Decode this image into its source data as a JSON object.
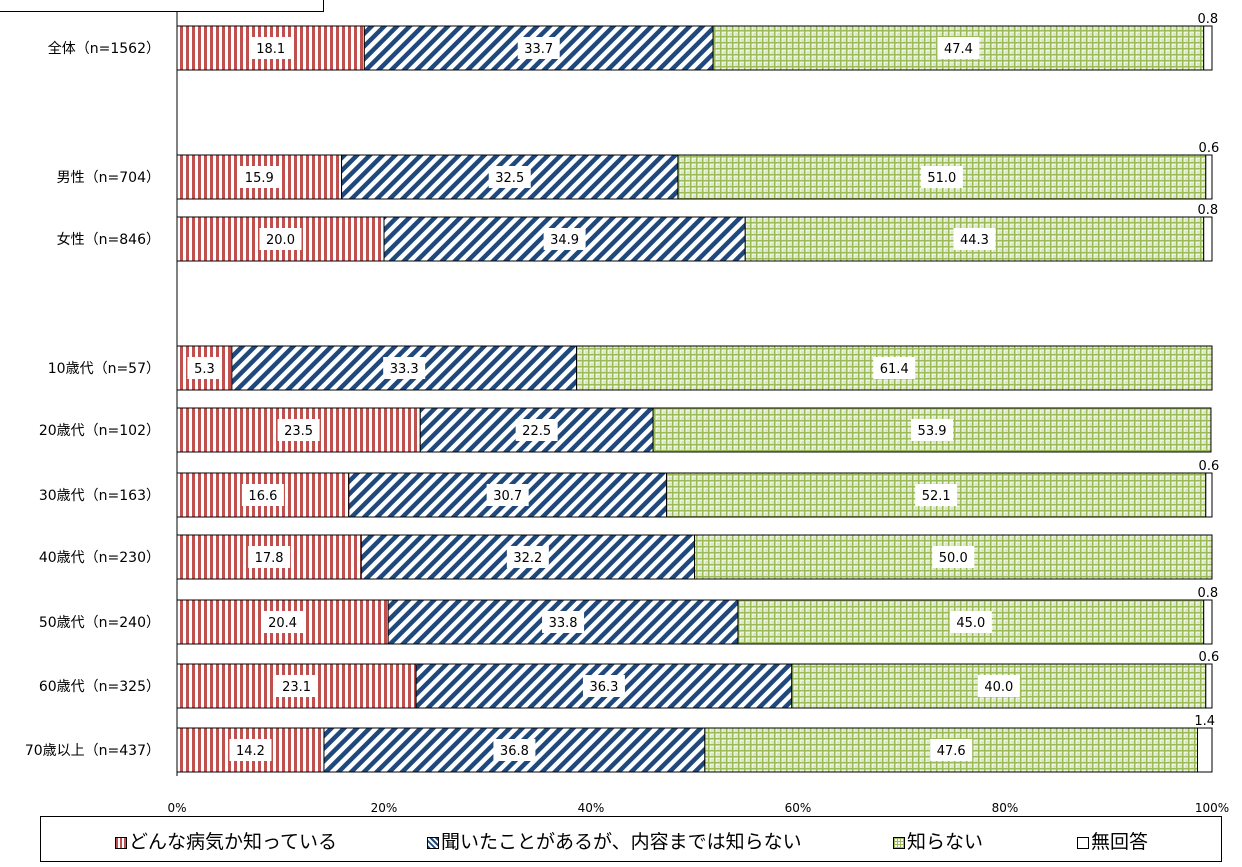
{
  "header": {
    "question": ""
  },
  "chart_data": {
    "type": "bar",
    "orientation": "horizontal",
    "stacked": "percent",
    "categories": [
      "全体（n=1562）",
      "男性（n=704）",
      "女性（n=846）",
      "10歳代（n=57）",
      "20歳代（n=102）",
      "30歳代（n=163）",
      "40歳代（n=230）",
      "50歳代（n=240）",
      "60歳代（n=325）",
      "70歳以上（n=437）"
    ],
    "series": [
      {
        "name": "どんな病気か知っている",
        "values": [
          18.1,
          15.9,
          20.0,
          5.3,
          23.5,
          16.6,
          17.8,
          20.4,
          23.1,
          14.2
        ],
        "color": "#c0504d",
        "pattern": "vertical-stripes"
      },
      {
        "name": "聞いたことがあるが、内容までは知らない",
        "values": [
          33.7,
          32.5,
          34.9,
          33.3,
          22.5,
          30.7,
          32.2,
          33.8,
          36.3,
          36.8
        ],
        "color": "#1f497d",
        "pattern": "diagonal-stripes"
      },
      {
        "name": "知らない",
        "values": [
          47.4,
          51.0,
          44.3,
          61.4,
          53.9,
          52.1,
          50.0,
          45.0,
          40.0,
          47.6
        ],
        "color": "#9bbb59",
        "pattern": "grid"
      },
      {
        "name": "無回答",
        "values": [
          0.8,
          0.6,
          0.8,
          null,
          null,
          0.6,
          null,
          0.8,
          0.6,
          1.4
        ],
        "color": "#ffffff",
        "pattern": "none"
      }
    ],
    "value_labels": {
      "s0": [
        "18.1",
        "15.9",
        "20.0",
        "5.3",
        "23.5",
        "16.6",
        "17.8",
        "20.4",
        "23.1",
        "14.2"
      ],
      "s1": [
        "33.7",
        "32.5",
        "34.9",
        "33.3",
        "22.5",
        "30.7",
        "32.2",
        "33.8",
        "36.3",
        "36.8"
      ],
      "s2": [
        "47.4",
        "51.0",
        "44.3",
        "61.4",
        "53.9",
        "52.1",
        "50.0",
        "45.0",
        "40.0",
        "47.6"
      ],
      "s3": [
        "0.8",
        "0.6",
        "0.8",
        "",
        "",
        "0.6",
        "",
        "0.8",
        "0.6",
        "1.4"
      ]
    },
    "x_ticks": [
      "0%",
      "20%",
      "40%",
      "60%",
      "80%",
      "100%"
    ],
    "xlim": [
      0,
      100
    ],
    "legend_position": "bottom",
    "grid": false
  }
}
